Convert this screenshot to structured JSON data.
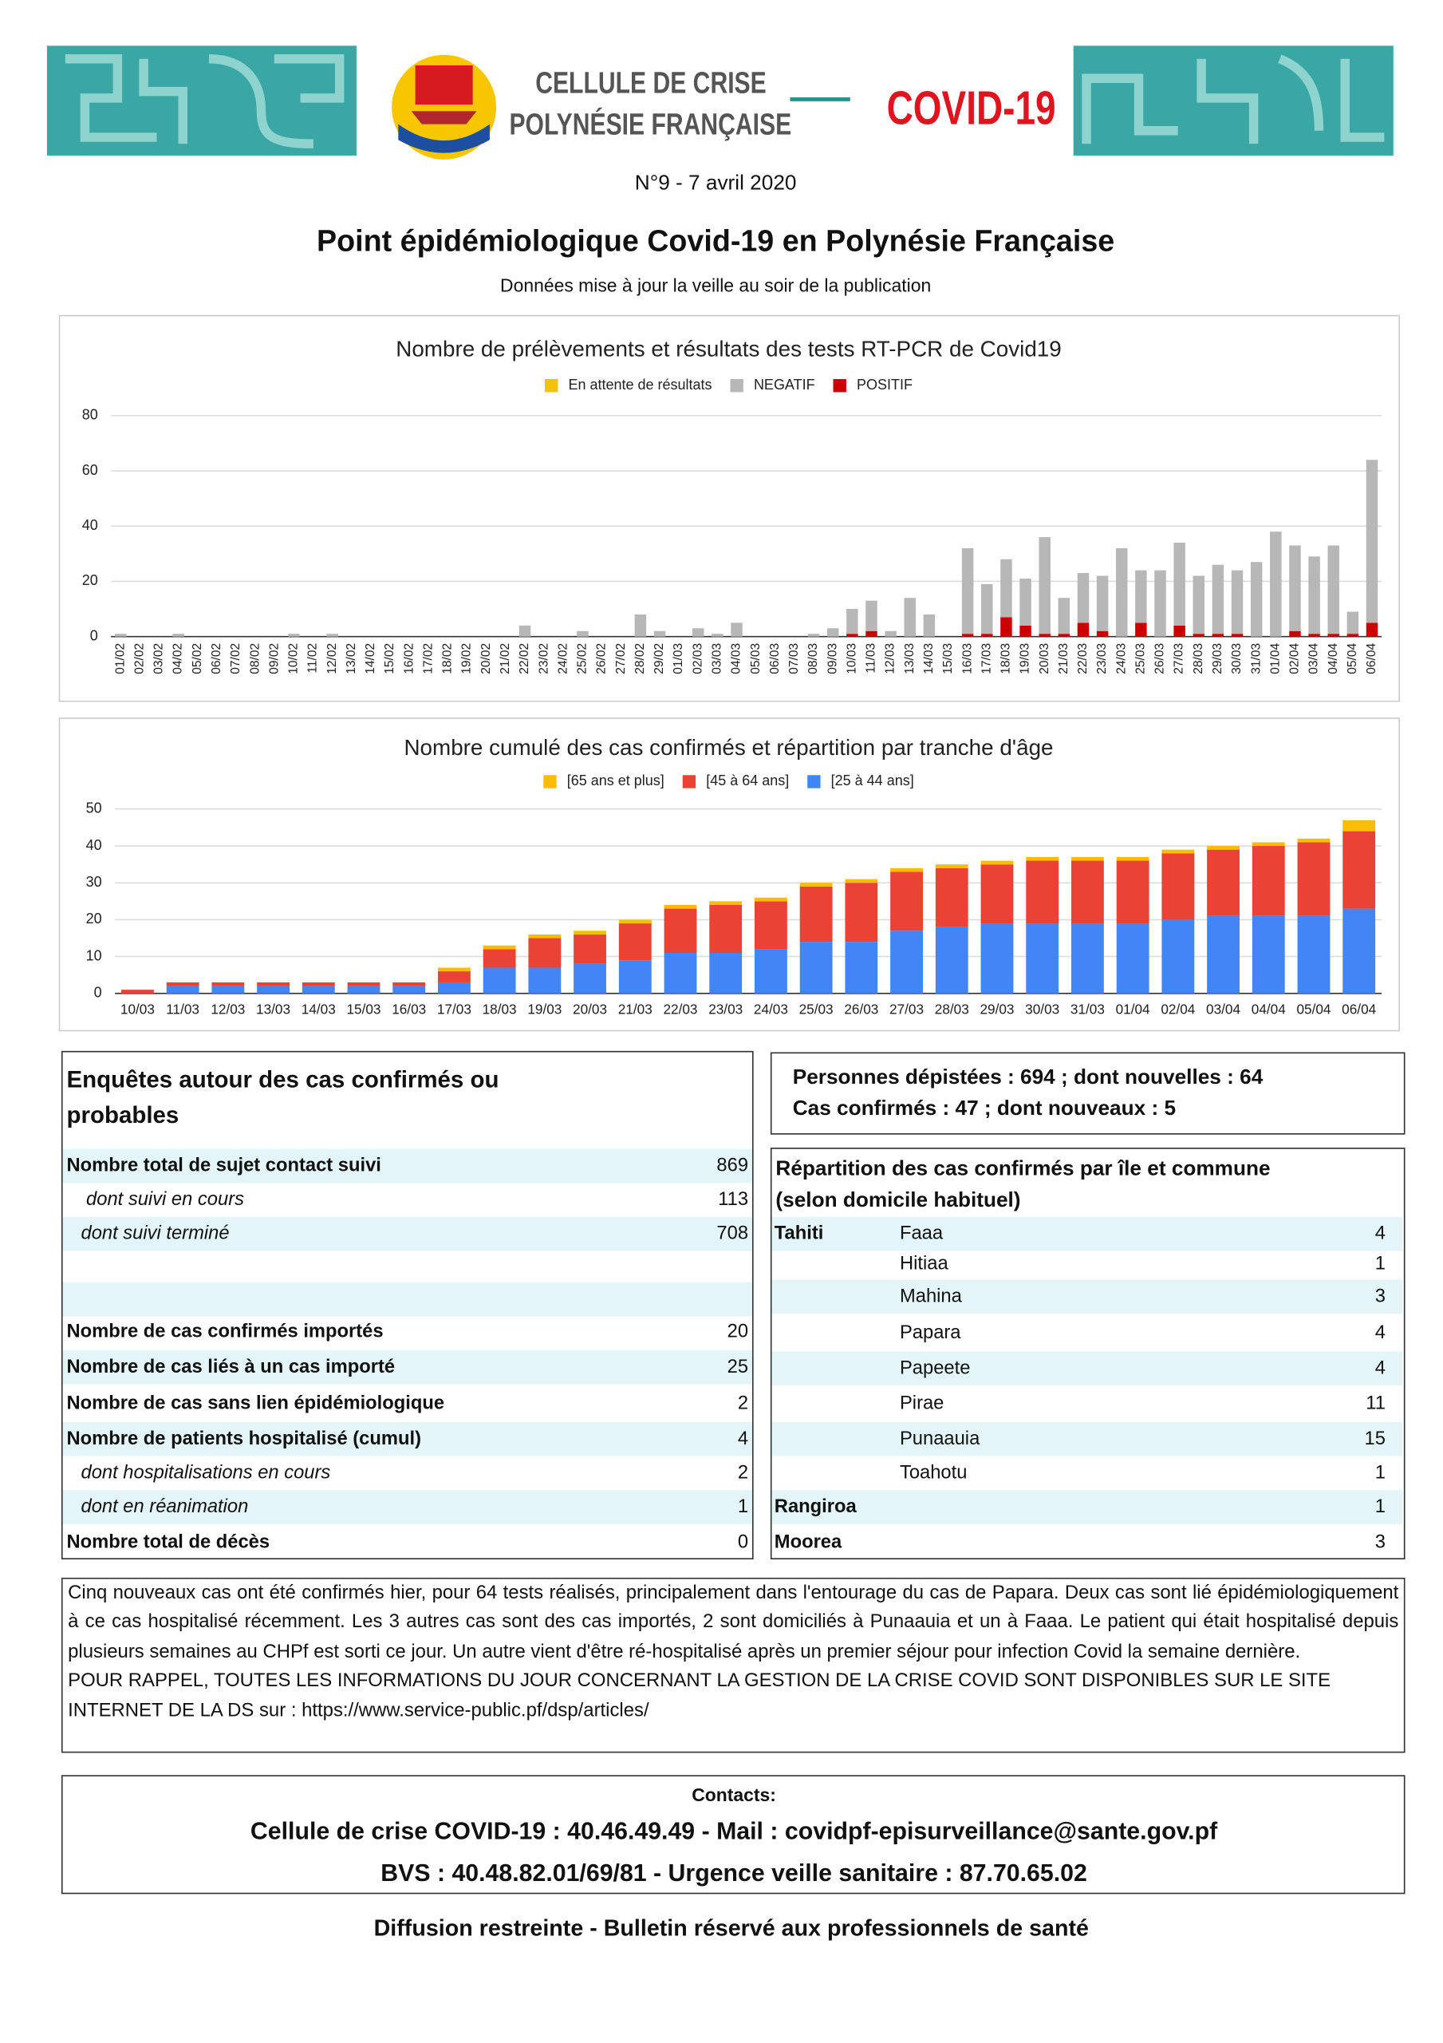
{
  "header": {
    "line1": "CELLULE DE CRISE",
    "line2": "POLYNÉSIE FRANÇAISE",
    "badge": "COVID-19"
  },
  "issue": "N°9 - 7 avril 2020",
  "title": "Point épidémiologique Covid-19 en Polynésie Française",
  "subtitle": "Données mise à jour la veille au soir de la publication",
  "chart_data": [
    {
      "type": "bar",
      "stacked": true,
      "title": "Nombre de prélèvements et résultats des tests RT-PCR de Covid19",
      "categories": [
        "01/02",
        "02/02",
        "03/02",
        "04/02",
        "05/02",
        "06/02",
        "07/02",
        "08/02",
        "09/02",
        "10/02",
        "11/02",
        "12/02",
        "13/02",
        "14/02",
        "15/02",
        "16/02",
        "17/02",
        "18/02",
        "19/02",
        "20/02",
        "21/02",
        "22/02",
        "23/02",
        "24/02",
        "25/02",
        "26/02",
        "27/02",
        "28/02",
        "29/02",
        "01/03",
        "02/03",
        "03/03",
        "04/03",
        "05/03",
        "06/03",
        "07/03",
        "08/03",
        "09/03",
        "10/03",
        "11/03",
        "12/03",
        "13/03",
        "14/03",
        "15/03",
        "16/03",
        "17/03",
        "18/03",
        "19/03",
        "20/03",
        "21/03",
        "22/03",
        "23/03",
        "24/03",
        "25/03",
        "26/03",
        "27/03",
        "28/03",
        "29/03",
        "30/03",
        "31/03",
        "01/04",
        "02/04",
        "03/04",
        "04/04",
        "05/04",
        "06/04"
      ],
      "series": [
        {
          "name": "En attente de résultats",
          "color": "#f4c20d",
          "values": [
            0,
            0,
            0,
            0,
            0,
            0,
            0,
            0,
            0,
            0,
            0,
            0,
            0,
            0,
            0,
            0,
            0,
            0,
            0,
            0,
            0,
            0,
            0,
            0,
            0,
            0,
            0,
            0,
            0,
            0,
            0,
            0,
            0,
            0,
            0,
            0,
            0,
            0,
            0,
            0,
            0,
            0,
            0,
            0,
            0,
            0,
            0,
            0,
            0,
            0,
            0,
            0,
            0,
            0,
            0,
            0,
            0,
            0,
            0,
            0,
            0,
            0,
            0,
            0,
            0,
            0
          ]
        },
        {
          "name": "NEGATIF",
          "color": "#b7b7b7",
          "values": [
            1,
            0,
            0,
            1,
            0,
            0,
            0,
            0,
            0,
            1,
            0,
            1,
            0,
            0,
            0,
            0,
            0,
            0,
            0,
            0,
            0,
            4,
            0,
            0,
            2,
            0,
            0,
            8,
            2,
            0,
            3,
            1,
            5,
            0,
            0,
            0,
            1,
            3,
            9,
            11,
            2,
            14,
            8,
            0,
            31,
            18,
            21,
            17,
            35,
            13,
            18,
            20,
            32,
            19,
            24,
            30,
            21,
            25,
            23,
            27,
            38,
            31,
            28,
            32,
            8,
            59
          ]
        },
        {
          "name": "POSITIF",
          "color": "#cc0000",
          "values": [
            0,
            0,
            0,
            0,
            0,
            0,
            0,
            0,
            0,
            0,
            0,
            0,
            0,
            0,
            0,
            0,
            0,
            0,
            0,
            0,
            0,
            0,
            0,
            0,
            0,
            0,
            0,
            0,
            0,
            0,
            0,
            0,
            0,
            0,
            0,
            0,
            0,
            0,
            1,
            2,
            0,
            0,
            0,
            0,
            1,
            1,
            7,
            4,
            1,
            1,
            5,
            2,
            0,
            5,
            0,
            4,
            1,
            1,
            1,
            0,
            0,
            2,
            1,
            1,
            1,
            5
          ]
        }
      ],
      "ylim": [
        0,
        80
      ],
      "yticks": [
        0,
        20,
        40,
        60,
        80
      ],
      "grid": true
    },
    {
      "type": "bar",
      "stacked": true,
      "title": "Nombre cumulé des cas confirmés et répartition par tranche d'âge",
      "categories": [
        "10/03",
        "11/03",
        "12/03",
        "13/03",
        "14/03",
        "15/03",
        "16/03",
        "17/03",
        "18/03",
        "19/03",
        "20/03",
        "21/03",
        "22/03",
        "23/03",
        "24/03",
        "25/03",
        "26/03",
        "27/03",
        "28/03",
        "29/03",
        "30/03",
        "31/03",
        "01/04",
        "02/04",
        "03/04",
        "04/04",
        "05/04",
        "06/04"
      ],
      "series": [
        {
          "name": "[65 ans et plus]",
          "color": "#fbbc04",
          "values": [
            0,
            0,
            0,
            0,
            0,
            0,
            0,
            1,
            1,
            1,
            1,
            1,
            1,
            1,
            1,
            1,
            1,
            1,
            1,
            1,
            1,
            1,
            1,
            1,
            1,
            1,
            1,
            3
          ]
        },
        {
          "name": "[45 à 64 ans]",
          "color": "#ea4335",
          "values": [
            1,
            1,
            1,
            1,
            1,
            1,
            1,
            3,
            5,
            8,
            8,
            10,
            12,
            13,
            13,
            15,
            16,
            16,
            16,
            16,
            17,
            17,
            17,
            18,
            18,
            19,
            20,
            21
          ]
        },
        {
          "name": "[25 à 44 ans]",
          "color": "#4285f4",
          "values": [
            0,
            2,
            2,
            2,
            2,
            2,
            2,
            3,
            7,
            7,
            8,
            9,
            11,
            11,
            12,
            14,
            14,
            17,
            18,
            19,
            19,
            19,
            19,
            20,
            21,
            21,
            21,
            23
          ]
        }
      ],
      "ylim": [
        0,
        50
      ],
      "yticks": [
        0,
        10,
        20,
        30,
        40,
        50
      ],
      "grid": true
    }
  ],
  "enquetes": {
    "title": "Enquêtes autour des cas confirmés ou probables",
    "rows": [
      {
        "label": "Nombre total de sujet contact suivi",
        "value": 869
      },
      {
        "label": "dont suivi en cours",
        "value": 113
      },
      {
        "label": "dont suivi terminé",
        "value": 708
      },
      {
        "label": "Nombre de cas confirmés importés",
        "value": 20
      },
      {
        "label": "Nombre de cas liés à un cas importé",
        "value": 25
      },
      {
        "label": "Nombre de cas sans lien épidémiologique",
        "value": 2
      },
      {
        "label": "Nombre de patients hospitalisé (cumul)",
        "value": 4
      },
      {
        "label": "dont hospitalisations en cours",
        "value": 2
      },
      {
        "label": "dont en réanimation",
        "value": 1
      },
      {
        "label": "Nombre total de décès",
        "value": 0
      }
    ]
  },
  "summary": [
    "Personnes dépistées : 694 ; dont nouvelles : 64",
    "Cas confirmés : 47 ; dont nouveaux  : 5"
  ],
  "repartition": {
    "title": "Répartition des cas confirmés par île et commune (selon domicile habituel)",
    "islands": [
      {
        "name": "Tahiti",
        "communes": [
          {
            "name": "Faaa",
            "value": 4
          },
          {
            "name": "Hitiaa",
            "value": 1
          },
          {
            "name": "Mahina",
            "value": 3
          },
          {
            "name": "Papara",
            "value": 4
          },
          {
            "name": "Papeete",
            "value": 4
          },
          {
            "name": "Pirae",
            "value": 11
          },
          {
            "name": "Punaauia",
            "value": 15
          },
          {
            "name": "Toahotu",
            "value": 1
          }
        ]
      },
      {
        "name": "Rangiroa",
        "value": 1
      },
      {
        "name": "Moorea",
        "value": 3
      }
    ]
  },
  "note": [
    "Cinq nouveaux cas ont été confirmés hier, pour 64 tests réalisés, principalement dans l'entourage du cas de Papara. Deux cas sont lié épidémiologiquement à ce cas hospitalisé récemment. Les 3 autres cas sont des cas importés, 2 sont domiciliés à Punaauia et un à Faaa. Le patient qui était hospitalisé depuis plusieurs semaines au CHPf est sorti ce jour.  Un autre vient d'être ré-hospitalisé après un premier séjour pour infection Covid la semaine dernière.",
    "POUR RAPPEL, TOUTES LES INFORMATIONS DU JOUR CONCERNANT LA GESTION DE LA CRISE COVID SONT DISPONIBLES SUR LE SITE INTERNET DE LA DS sur : https://www.service-public.pf/dsp/articles/"
  ],
  "contacts": {
    "heading": "Contacts:",
    "lines": [
      "Cellule de crise COVID-19 : 40.46.49.49 - Mail : covidpf-episurveillance@sante.gov.pf",
      "BVS : 40.48.82.01/69/81 - Urgence veille sanitaire : 87.70.65.02"
    ]
  },
  "footer": "Diffusion restreinte - Bulletin réservé aux professionnels de santé"
}
